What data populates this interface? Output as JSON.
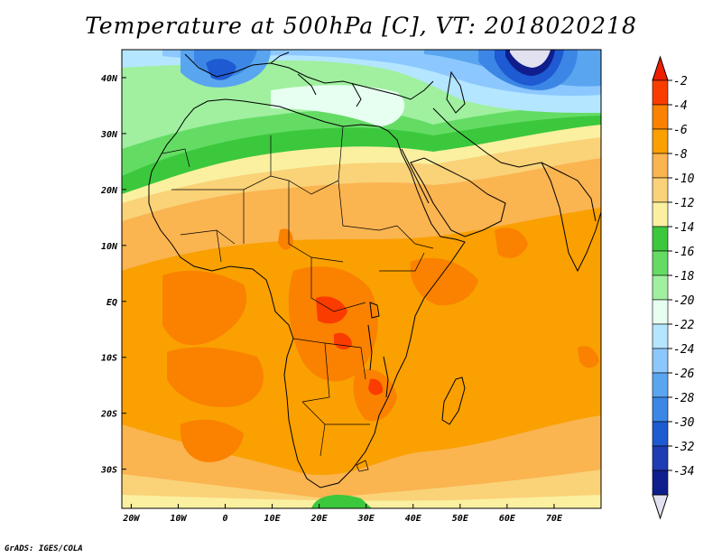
{
  "title": "Temperature at 500hPa [C], VT: 2018020218",
  "credit": "GrADS: IGES/COLA",
  "map": {
    "lon_range": [
      -22,
      80
    ],
    "lat_range": [
      -37,
      45
    ],
    "lon_ticks": [
      {
        "lon": -20,
        "label": "20W"
      },
      {
        "lon": -10,
        "label": "10W"
      },
      {
        "lon": 0,
        "label": "0"
      },
      {
        "lon": 10,
        "label": "10E"
      },
      {
        "lon": 20,
        "label": "20E"
      },
      {
        "lon": 30,
        "label": "30E"
      },
      {
        "lon": 40,
        "label": "40E"
      },
      {
        "lon": 50,
        "label": "50E"
      },
      {
        "lon": 60,
        "label": "60E"
      },
      {
        "lon": 70,
        "label": "70E"
      }
    ],
    "lat_ticks": [
      {
        "lat": 40,
        "label": "40N"
      },
      {
        "lat": 30,
        "label": "30N"
      },
      {
        "lat": 20,
        "label": "20N"
      },
      {
        "lat": 10,
        "label": "10N"
      },
      {
        "lat": 0,
        "label": "EQ"
      },
      {
        "lat": -10,
        "label": "10S"
      },
      {
        "lat": -20,
        "label": "20S"
      },
      {
        "lat": -30,
        "label": "30S"
      }
    ]
  },
  "colorbar": {
    "labels": [
      "-2",
      "-4",
      "-6",
      "-8",
      "-10",
      "-12",
      "-14",
      "-16",
      "-18",
      "-20",
      "-22",
      "-24",
      "-26",
      "-28",
      "-30",
      "-32",
      "-34"
    ],
    "colors": [
      "#fa3c00",
      "#fa8200",
      "#faa000",
      "#fab450",
      "#fad278",
      "#faf0a0",
      "#3cc83c",
      "#64dc64",
      "#a0f0a0",
      "#e6fff0",
      "#b4e6ff",
      "#8cc8ff",
      "#5aa5f0",
      "#3c87e6",
      "#1e5ad2",
      "#1e3cb4",
      "#0f1e8c"
    ],
    "top_color": "#f01e00",
    "bottom_color": "#e1e1f0"
  }
}
